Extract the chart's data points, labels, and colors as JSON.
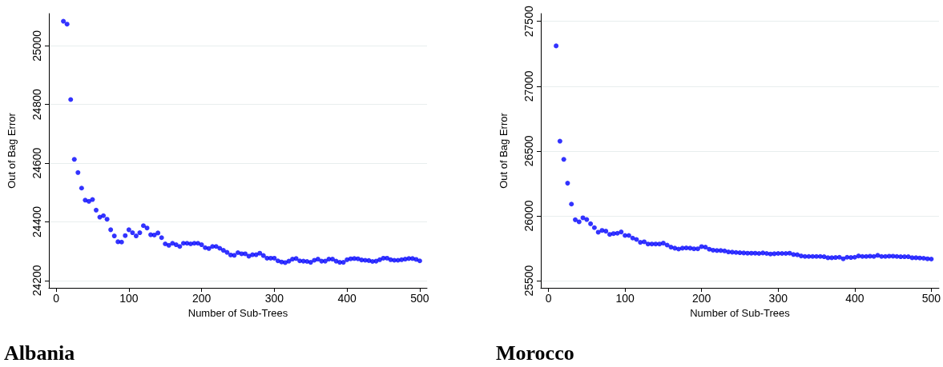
{
  "chart_data": [
    {
      "type": "scatter",
      "title": "Albania",
      "xlabel": "Number of Sub-Trees",
      "ylabel": "Out of Bag Error",
      "x": [
        10,
        15,
        20,
        25,
        30,
        35,
        40,
        45,
        50,
        55,
        60,
        65,
        70,
        75,
        80,
        85,
        90,
        95,
        100,
        105,
        110,
        115,
        120,
        125,
        130,
        135,
        140,
        145,
        150,
        155,
        160,
        165,
        170,
        175,
        180,
        185,
        190,
        195,
        200,
        205,
        210,
        215,
        220,
        225,
        230,
        235,
        240,
        245,
        250,
        255,
        260,
        265,
        270,
        275,
        280,
        285,
        290,
        295,
        300,
        305,
        310,
        315,
        320,
        325,
        330,
        335,
        340,
        345,
        350,
        355,
        360,
        365,
        370,
        375,
        380,
        385,
        390,
        395,
        400,
        405,
        410,
        415,
        420,
        425,
        430,
        435,
        440,
        445,
        450,
        455,
        460,
        465,
        470,
        475,
        480,
        485,
        490,
        495,
        500
      ],
      "series": [
        {
          "color": "#0000ff",
          "values": [
            25084,
            25074,
            24817,
            24613,
            24568,
            24515,
            24474,
            24470,
            24476,
            24440,
            24416,
            24421,
            24409,
            24373,
            24352,
            24332,
            24331,
            24353,
            24373,
            24363,
            24352,
            24363,
            24387,
            24379,
            24356,
            24355,
            24362,
            24346,
            24325,
            24320,
            24327,
            24322,
            24316,
            24327,
            24327,
            24325,
            24327,
            24327,
            24322,
            24312,
            24309,
            24316,
            24316,
            24310,
            24303,
            24296,
            24287,
            24286,
            24295,
            24291,
            24291,
            24283,
            24288,
            24288,
            24293,
            24285,
            24276,
            24276,
            24276,
            24267,
            24263,
            24261,
            24266,
            24273,
            24275,
            24267,
            24266,
            24265,
            24262,
            24269,
            24273,
            24266,
            24266,
            24273,
            24273,
            24266,
            24262,
            24262,
            24271,
            24274,
            24275,
            24274,
            24270,
            24269,
            24268,
            24265,
            24266,
            24271,
            24276,
            24276,
            24271,
            24269,
            24269,
            24271,
            24273,
            24275,
            24275,
            24272,
            24267
          ]
        }
      ],
      "xlim": [
        -10,
        510
      ],
      "xticks": [
        0,
        100,
        200,
        300,
        400,
        500
      ],
      "ylim": [
        24175,
        25110
      ],
      "yticks": [
        24200,
        24400,
        24600,
        24800,
        25000
      ],
      "grid": "y",
      "marker": "circle"
    },
    {
      "type": "scatter",
      "title": "Morocco",
      "xlabel": "Number of Sub-Trees",
      "ylabel": "Out of Bag Error",
      "x": [
        10,
        15,
        20,
        25,
        30,
        35,
        40,
        45,
        50,
        55,
        60,
        65,
        70,
        75,
        80,
        85,
        90,
        95,
        100,
        105,
        110,
        115,
        120,
        125,
        130,
        135,
        140,
        145,
        150,
        155,
        160,
        165,
        170,
        175,
        180,
        185,
        190,
        195,
        200,
        205,
        210,
        215,
        220,
        225,
        230,
        235,
        240,
        245,
        250,
        255,
        260,
        265,
        270,
        275,
        280,
        285,
        290,
        295,
        300,
        305,
        310,
        315,
        320,
        325,
        330,
        335,
        340,
        345,
        350,
        355,
        360,
        365,
        370,
        375,
        380,
        385,
        390,
        395,
        400,
        405,
        410,
        415,
        420,
        425,
        430,
        435,
        440,
        445,
        450,
        455,
        460,
        465,
        470,
        475,
        480,
        485,
        490,
        495,
        500
      ],
      "series": [
        {
          "color": "#0000ff",
          "values": [
            27311,
            26576,
            26436,
            26252,
            26091,
            25970,
            25954,
            25985,
            25972,
            25939,
            25909,
            25874,
            25888,
            25882,
            25857,
            25863,
            25866,
            25876,
            25849,
            25849,
            25829,
            25818,
            25796,
            25800,
            25783,
            25783,
            25783,
            25783,
            25790,
            25775,
            25759,
            25751,
            25744,
            25751,
            25753,
            25751,
            25746,
            25746,
            25763,
            25759,
            25743,
            25735,
            25733,
            25733,
            25730,
            25722,
            25720,
            25718,
            25716,
            25714,
            25712,
            25712,
            25712,
            25710,
            25714,
            25710,
            25706,
            25708,
            25710,
            25710,
            25710,
            25712,
            25702,
            25700,
            25691,
            25687,
            25687,
            25687,
            25687,
            25687,
            25685,
            25677,
            25677,
            25679,
            25681,
            25669,
            25681,
            25679,
            25681,
            25691,
            25687,
            25687,
            25689,
            25687,
            25696,
            25687,
            25687,
            25689,
            25689,
            25687,
            25685,
            25685,
            25685,
            25677,
            25677,
            25675,
            25673,
            25669,
            25667
          ]
        }
      ],
      "xlim": [
        -10,
        510
      ],
      "xticks": [
        0,
        100,
        200,
        300,
        400,
        500
      ],
      "ylim": [
        25445,
        27560
      ],
      "yticks": [
        25500,
        26000,
        26500,
        27000,
        27500
      ],
      "grid": "y",
      "marker": "circle"
    }
  ]
}
